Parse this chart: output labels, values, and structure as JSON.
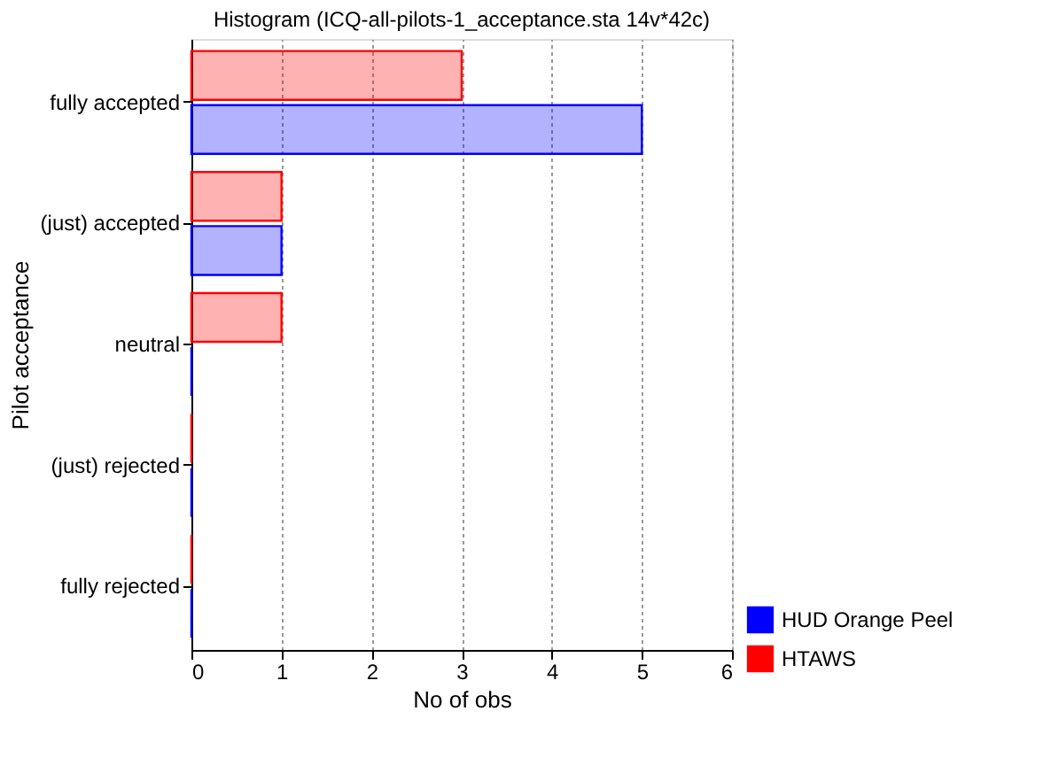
{
  "chart_data": {
    "type": "bar",
    "orientation": "horizontal",
    "title": "Histogram (ICQ-all-pilots-1_acceptance.sta 14v*42c)",
    "xlabel": "No of obs",
    "ylabel": "Pilot acceptance",
    "categories": [
      "fully accepted",
      "(just) accepted",
      "neutral",
      "(just) rejected",
      "fully rejected"
    ],
    "series": [
      {
        "name": "HUD Orange Peel",
        "color": "#0000ff",
        "values": [
          5,
          1,
          0,
          0,
          0
        ]
      },
      {
        "name": "HTAWS",
        "color": "#ff0000",
        "values": [
          3,
          1,
          1,
          0,
          0
        ]
      }
    ],
    "xlim": [
      0,
      6
    ],
    "xticks": [
      0,
      1,
      2,
      3,
      4,
      5,
      6
    ],
    "grid": "x",
    "legend": "bottom right"
  }
}
